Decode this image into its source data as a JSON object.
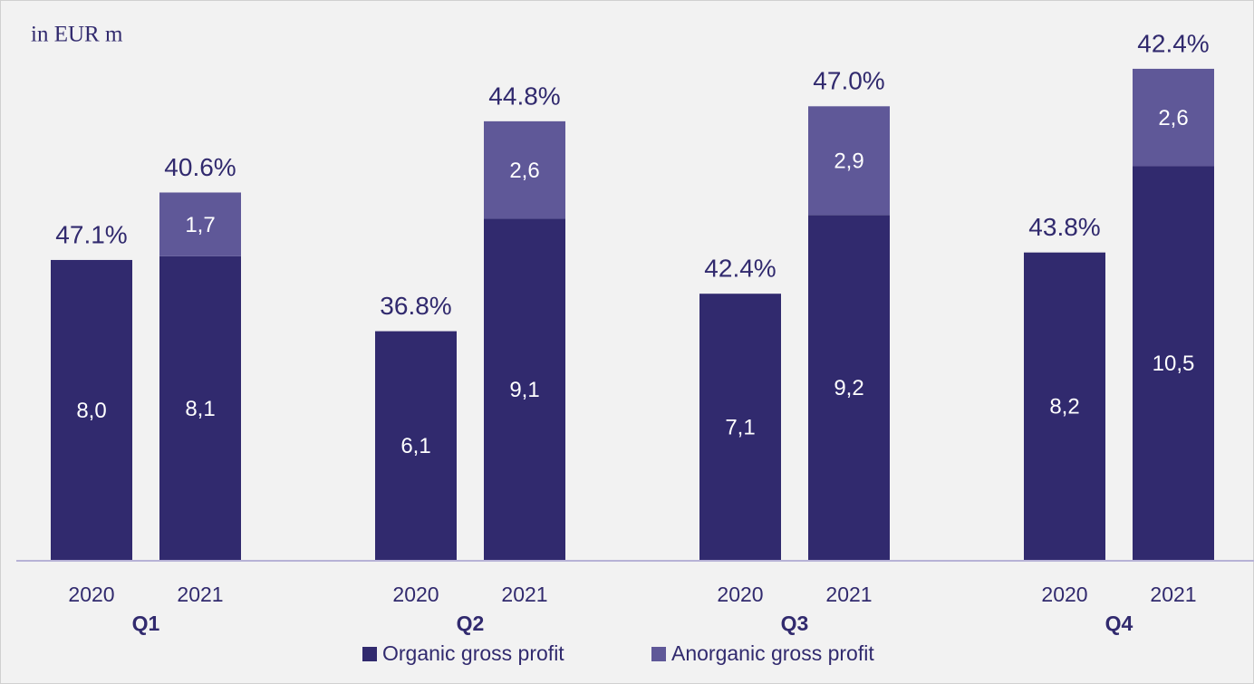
{
  "chart_data": {
    "type": "bar",
    "stacked": true,
    "subtitle": "in EUR m",
    "categories": [
      "2020",
      "2021",
      "2020",
      "2021",
      "2020",
      "2021",
      "2020",
      "2021"
    ],
    "groups": [
      "Q1",
      "Q2",
      "Q3",
      "Q4"
    ],
    "series": [
      {
        "name": "Organic gross profit",
        "color": "#312a6e",
        "values": [
          8.0,
          8.1,
          6.1,
          9.1,
          7.1,
          9.2,
          8.2,
          10.5
        ],
        "value_labels": [
          "8,0",
          "8,1",
          "6,1",
          "9,1",
          "7,1",
          "9,2",
          "8,2",
          "10,5"
        ]
      },
      {
        "name": "Anorganic gross profit",
        "color": "#5f5898",
        "values": [
          null,
          1.7,
          null,
          2.6,
          null,
          2.9,
          null,
          2.6
        ],
        "value_labels": [
          null,
          "1,7",
          null,
          "2,6",
          null,
          "2,9",
          null,
          "2,6"
        ]
      }
    ],
    "annotations": [
      "47.1%",
      "40.6%",
      "36.8%",
      "44.8%",
      "42.4%",
      "47.0%",
      "43.8%",
      "42.4%"
    ],
    "ylim": [
      0,
      14.5
    ]
  }
}
